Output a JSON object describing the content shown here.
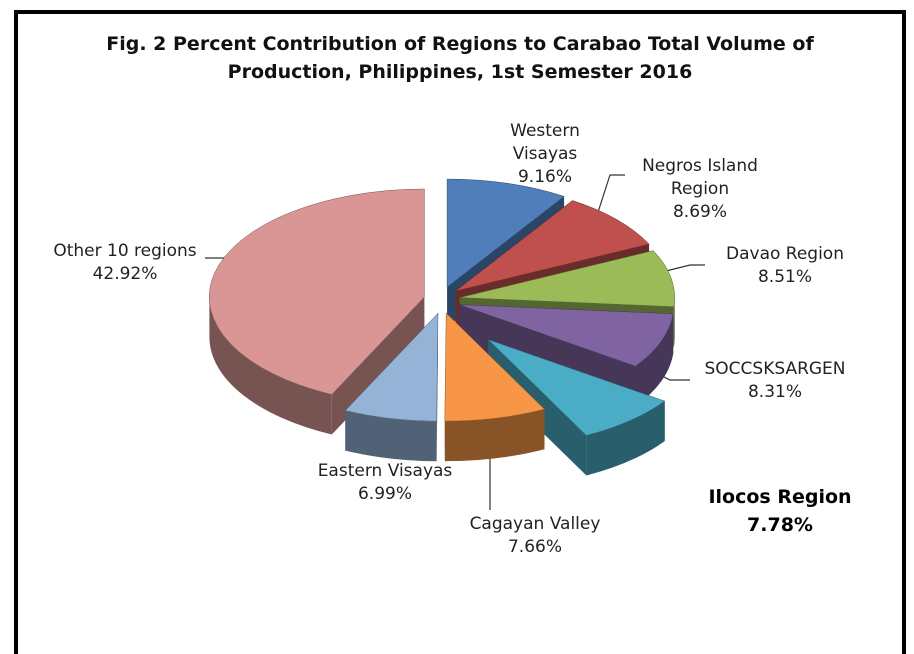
{
  "chart_data": {
    "type": "pie3d",
    "title": "Fig. 2 Percent Contribution of Regions to Carabao Total Volume of Production, Philippines, 1st Semester 2016",
    "categories": [
      "Western Visayas",
      "Negros Island Region",
      "Davao Region",
      "SOCCSKSARGEN",
      "Ilocos Region",
      "Cagayan Valley",
      "Eastern Visayas",
      "Other 10 regions"
    ],
    "values": [
      9.16,
      8.69,
      8.51,
      8.31,
      7.78,
      7.66,
      6.99,
      42.92
    ],
    "value_labels": [
      "9.16%",
      "8.69%",
      "8.51%",
      "8.31%",
      "7.78%",
      "7.66%",
      "6.99%",
      "42.92%"
    ],
    "colors": [
      "#4f7ebb",
      "#c0504d",
      "#9bbb59",
      "#8064a2",
      "#4bacc6",
      "#f79646",
      "#95b3d7",
      "#d99694"
    ],
    "exploded": "Ilocos Region"
  }
}
